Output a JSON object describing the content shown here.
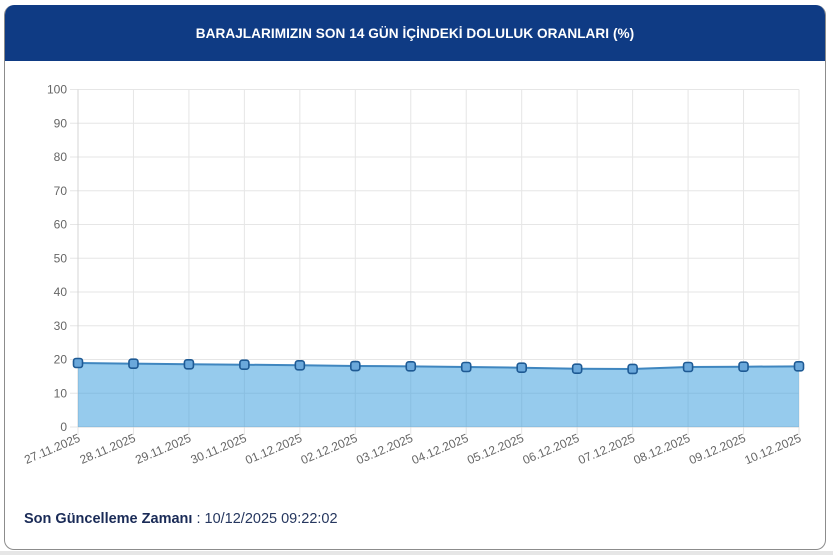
{
  "header": {
    "title": "BARAJLARIMIZIN SON 14 GÜN İÇİNDEKİ DOLULUK ORANLARI (%)"
  },
  "footer": {
    "label": "Son Güncelleme Zamanı",
    "separator": " : ",
    "value": "10/12/2025 09:22:02"
  },
  "colors": {
    "header_bg": "#0f3b84",
    "header_text": "#ffffff",
    "area_fill": "rgba(54,155,220,0.52)",
    "line": "#3f86bf",
    "point_fill": "#6aa8db",
    "point_border": "#1e5a94",
    "grid": "#e6e6e6",
    "tick_text": "#666666",
    "footer_text": "#1a2b57"
  },
  "chart_data": {
    "type": "area",
    "title": "BARAJLARIMIZIN SON 14 GÜN İÇİNDEKİ DOLULUK ORANLARI (%)",
    "xlabel": "",
    "ylabel": "",
    "categories": [
      "27.11.2025",
      "28.11.2025",
      "29.11.2025",
      "30.11.2025",
      "01.12.2025",
      "02.12.2025",
      "03.12.2025",
      "04.12.2025",
      "05.12.2025",
      "06.12.2025",
      "07.12.2025",
      "08.12.2025",
      "09.12.2025",
      "10.12.2025"
    ],
    "values": [
      18.96,
      18.76,
      18.58,
      18.46,
      18.28,
      18.07,
      17.98,
      17.78,
      17.57,
      17.27,
      17.19,
      17.78,
      17.87,
      17.98
    ],
    "ylim": [
      0,
      100
    ],
    "yticks": [
      0,
      10,
      20,
      30,
      40,
      50,
      60,
      70,
      80,
      90,
      100
    ],
    "grid": true,
    "legend": "none",
    "point_style": "rounded-square",
    "x_label_rotation": -23
  }
}
